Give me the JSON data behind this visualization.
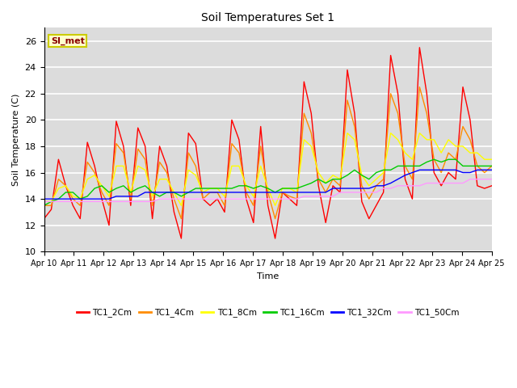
{
  "title": "Soil Temperatures Set 1",
  "xlabel": "Time",
  "ylabel": "Soil Temperature (C)",
  "ylim": [
    10,
    27
  ],
  "yticks": [
    10,
    12,
    14,
    16,
    18,
    20,
    22,
    24,
    26
  ],
  "fig_bg_color": "#ffffff",
  "plot_bg_color": "#dcdcdc",
  "annotation_text": "SI_met",
  "annotation_color": "#8b0000",
  "annotation_bg": "#ffffcc",
  "annotation_edge": "#cccc00",
  "series_colors": {
    "TC1_2Cm": "#ff0000",
    "TC1_4Cm": "#ff8c00",
    "TC1_8Cm": "#ffff00",
    "TC1_16Cm": "#00cc00",
    "TC1_32Cm": "#0000ff",
    "TC1_50Cm": "#ff99ff"
  },
  "x_start_day": 10,
  "x_end_day": 25,
  "xtick_days": [
    10,
    11,
    12,
    13,
    14,
    15,
    16,
    17,
    18,
    19,
    20,
    21,
    22,
    23,
    24,
    25
  ],
  "TC1_2Cm": [
    12.5,
    13.2,
    17.0,
    15.0,
    13.5,
    12.5,
    18.3,
    16.5,
    14.0,
    12.0,
    19.9,
    18.0,
    13.5,
    19.4,
    18.0,
    12.5,
    18.0,
    16.5,
    13.0,
    11.0,
    19.0,
    18.2,
    14.0,
    13.5,
    14.0,
    13.0,
    20.0,
    18.5,
    14.0,
    12.2,
    19.5,
    13.5,
    11.0,
    14.5,
    14.0,
    13.5,
    22.9,
    20.5,
    15.0,
    12.2,
    15.0,
    14.5,
    23.8,
    20.5,
    13.8,
    12.5,
    13.5,
    14.5,
    24.9,
    22.0,
    15.5,
    14.0,
    25.5,
    22.0,
    16.0,
    15.0,
    16.0,
    15.5,
    22.5,
    20.0,
    15.0,
    14.8,
    15.0
  ],
  "TC1_4Cm": [
    13.5,
    13.5,
    15.5,
    15.0,
    14.0,
    13.5,
    16.8,
    16.0,
    14.5,
    13.5,
    18.2,
    17.5,
    14.0,
    17.8,
    17.0,
    13.5,
    16.8,
    16.0,
    14.0,
    12.5,
    17.5,
    16.5,
    14.0,
    14.5,
    14.5,
    13.5,
    18.2,
    17.5,
    14.5,
    13.5,
    18.0,
    14.5,
    12.5,
    14.5,
    14.2,
    14.0,
    20.5,
    19.0,
    15.5,
    14.5,
    15.5,
    15.0,
    21.5,
    19.5,
    15.0,
    14.0,
    15.0,
    15.5,
    22.0,
    20.5,
    16.5,
    15.5,
    22.5,
    20.5,
    17.0,
    16.0,
    17.5,
    17.0,
    19.5,
    18.5,
    16.5,
    16.0,
    16.5
  ],
  "TC1_8Cm": [
    13.8,
    13.8,
    14.8,
    15.0,
    14.2,
    14.0,
    15.5,
    15.8,
    15.0,
    14.2,
    16.5,
    16.5,
    14.5,
    16.5,
    16.2,
    14.2,
    15.5,
    15.5,
    14.5,
    13.5,
    16.2,
    15.8,
    14.5,
    14.8,
    14.8,
    14.2,
    16.5,
    16.5,
    15.0,
    14.2,
    16.5,
    14.8,
    13.5,
    14.8,
    14.8,
    14.5,
    18.5,
    18.0,
    16.0,
    15.2,
    15.8,
    15.5,
    19.0,
    18.5,
    15.8,
    15.0,
    15.5,
    16.0,
    19.0,
    18.5,
    17.5,
    17.0,
    19.0,
    18.5,
    18.5,
    17.5,
    18.5,
    18.0,
    18.0,
    17.5,
    17.5,
    17.0,
    17.0
  ],
  "TC1_16Cm": [
    13.5,
    13.8,
    14.0,
    14.5,
    14.5,
    14.0,
    14.2,
    14.8,
    15.0,
    14.5,
    14.8,
    15.0,
    14.5,
    14.8,
    15.0,
    14.5,
    14.2,
    14.5,
    14.5,
    14.2,
    14.5,
    14.8,
    14.8,
    14.8,
    14.8,
    14.8,
    14.8,
    15.0,
    15.0,
    14.8,
    15.0,
    14.8,
    14.5,
    14.8,
    14.8,
    14.8,
    15.0,
    15.2,
    15.5,
    15.2,
    15.5,
    15.5,
    15.8,
    16.2,
    15.8,
    15.5,
    16.0,
    16.2,
    16.2,
    16.5,
    16.5,
    16.5,
    16.5,
    16.8,
    17.0,
    16.8,
    17.0,
    17.0,
    16.5,
    16.5,
    16.5,
    16.5,
    16.5
  ],
  "TC1_32Cm": [
    14.0,
    14.0,
    14.0,
    14.0,
    14.0,
    14.0,
    14.0,
    14.0,
    14.0,
    14.0,
    14.2,
    14.2,
    14.2,
    14.2,
    14.5,
    14.5,
    14.5,
    14.5,
    14.5,
    14.5,
    14.5,
    14.5,
    14.5,
    14.5,
    14.5,
    14.5,
    14.5,
    14.5,
    14.5,
    14.5,
    14.5,
    14.5,
    14.5,
    14.5,
    14.5,
    14.5,
    14.5,
    14.5,
    14.5,
    14.5,
    14.8,
    14.8,
    14.8,
    14.8,
    14.8,
    14.8,
    15.0,
    15.0,
    15.2,
    15.5,
    15.8,
    16.0,
    16.2,
    16.2,
    16.2,
    16.2,
    16.2,
    16.2,
    16.0,
    16.0,
    16.2,
    16.2,
    16.2
  ],
  "TC1_50Cm": [
    13.8,
    13.8,
    13.8,
    13.8,
    13.8,
    13.8,
    13.8,
    13.8,
    13.8,
    13.8,
    13.8,
    13.8,
    13.8,
    13.8,
    13.8,
    13.8,
    14.0,
    14.0,
    14.0,
    14.0,
    14.0,
    14.0,
    14.0,
    14.0,
    14.0,
    14.0,
    14.0,
    14.0,
    14.0,
    14.0,
    14.0,
    14.0,
    14.0,
    14.0,
    14.0,
    14.0,
    14.2,
    14.2,
    14.2,
    14.2,
    14.2,
    14.5,
    14.5,
    14.5,
    14.5,
    14.5,
    14.5,
    14.8,
    14.8,
    15.0,
    15.0,
    15.0,
    15.0,
    15.2,
    15.2,
    15.2,
    15.2,
    15.2,
    15.2,
    15.5,
    15.5,
    15.5,
    15.5
  ]
}
